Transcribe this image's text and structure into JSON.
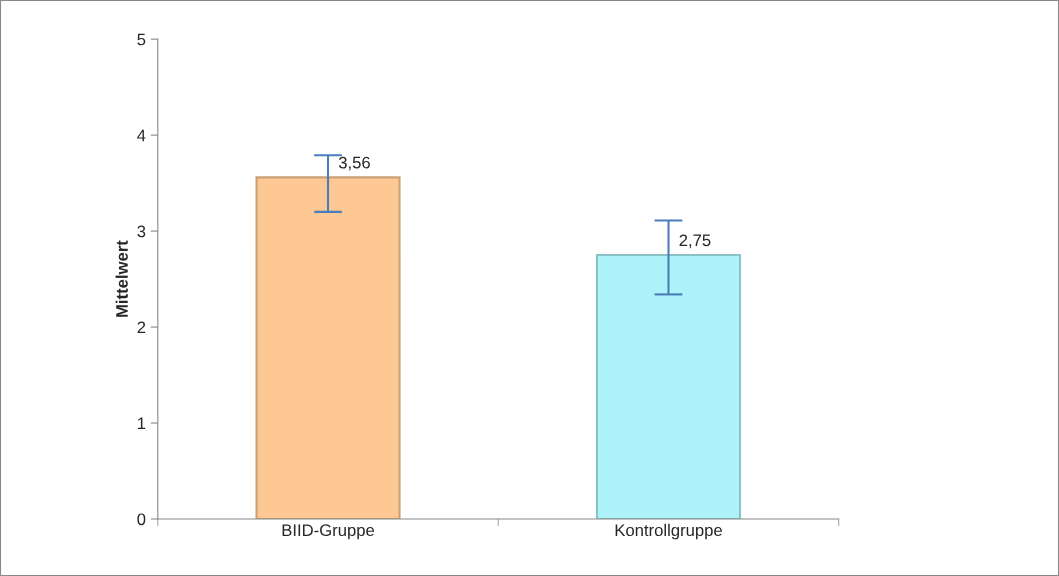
{
  "chart_data": {
    "type": "bar",
    "ylabel": "Mittelwert",
    "categories": [
      "BIID-Gruppe",
      "Kontrollgruppe"
    ],
    "values": [
      3.56,
      2.75
    ],
    "colors": [
      "#fdc894",
      "#aef2fa"
    ],
    "errors": [
      [
        3.2,
        3.79
      ],
      [
        2.34,
        3.11
      ]
    ],
    "value_labels": [
      "3,56",
      "2,75"
    ],
    "ylim": [
      0,
      5
    ],
    "yticks": [
      0,
      1,
      2,
      3,
      4,
      5
    ],
    "grid": false,
    "legend": false
  }
}
